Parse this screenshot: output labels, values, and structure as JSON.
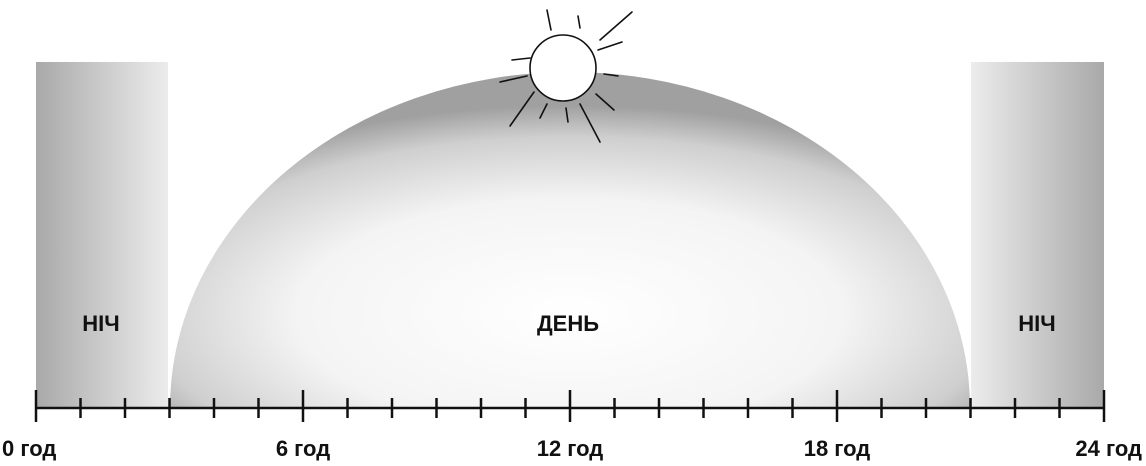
{
  "labels": {
    "night_left": "НІЧ",
    "day": "ДЕНЬ",
    "night_right": "НІЧ"
  },
  "axis": {
    "labels": [
      "0 год",
      "6 год",
      "12 год",
      "18 год",
      "24 год"
    ]
  }
}
